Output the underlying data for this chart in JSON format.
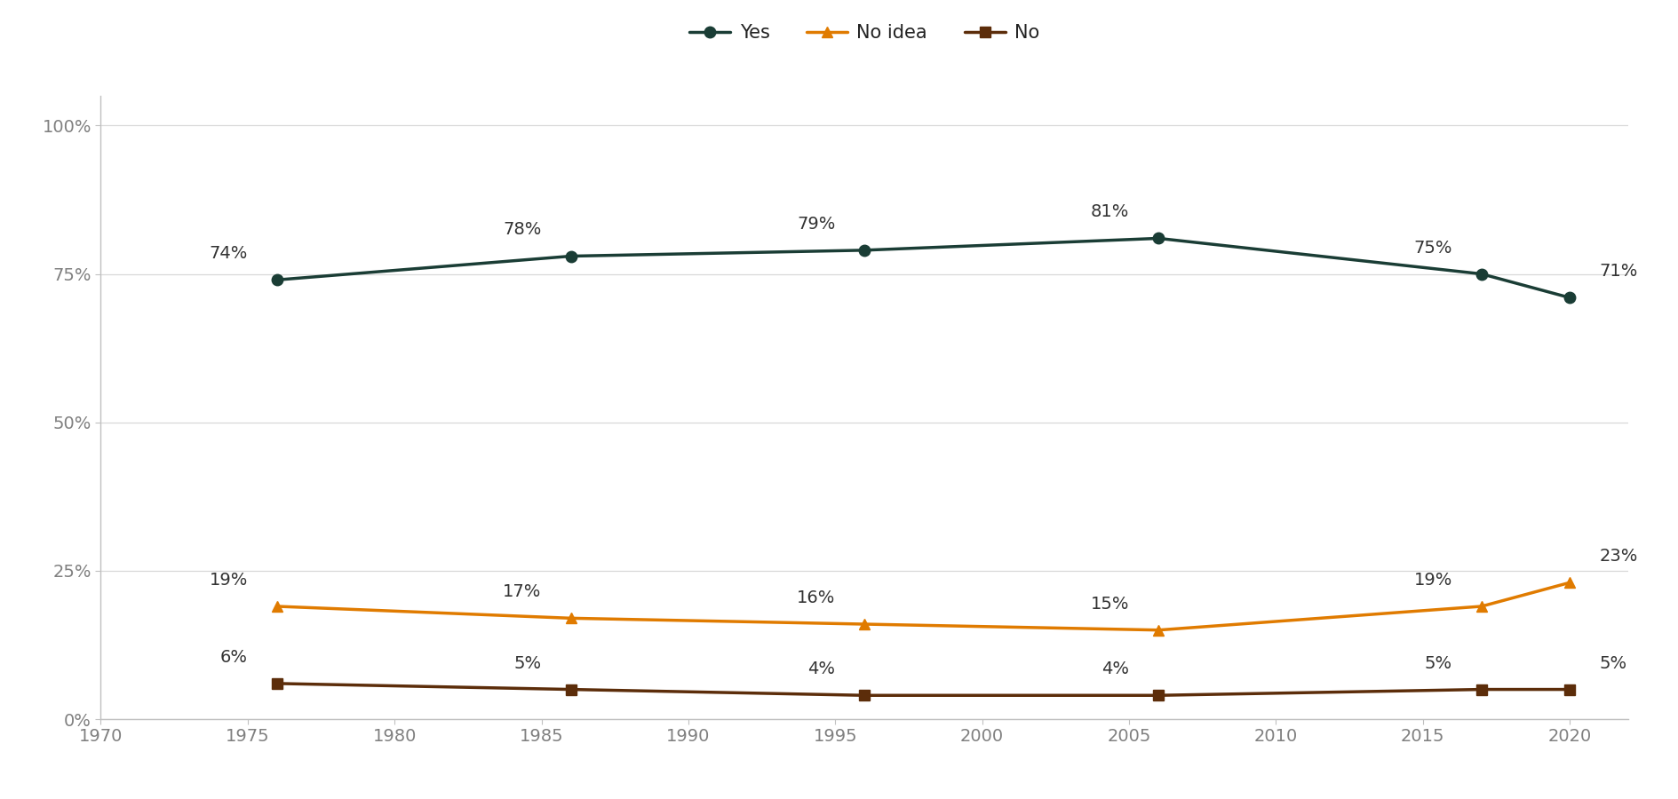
{
  "years": [
    1976,
    1986,
    1996,
    2006,
    2017,
    2020
  ],
  "yes_values": [
    74,
    78,
    79,
    81,
    75,
    71
  ],
  "no_idea_values": [
    19,
    17,
    16,
    15,
    19,
    23
  ],
  "no_values": [
    6,
    5,
    4,
    4,
    5,
    5
  ],
  "yes_color": "#1a3d35",
  "no_idea_color": "#e07b00",
  "no_color": "#5c2d0a",
  "yes_label": "Yes",
  "no_idea_label": "No idea",
  "no_label": "No",
  "xlim": [
    1970,
    2022
  ],
  "ylim": [
    0,
    105
  ],
  "yticks": [
    0,
    25,
    50,
    75,
    100
  ],
  "ytick_labels": [
    "0%",
    "25%",
    "50%",
    "75%",
    "100%"
  ],
  "xticks": [
    1970,
    1975,
    1980,
    1985,
    1990,
    1995,
    2000,
    2005,
    2010,
    2015,
    2020
  ],
  "background_color": "#ffffff",
  "line_width": 2.5,
  "marker_size": 9,
  "label_fontsize": 14,
  "legend_fontsize": 15,
  "tick_fontsize": 14,
  "tick_color": "#808080",
  "spine_color": "#c0c0c0",
  "grid_color": "#d8d8d8",
  "annotations_yes": [
    [
      1976,
      74,
      "left"
    ],
    [
      1986,
      78,
      "left"
    ],
    [
      1996,
      79,
      "left"
    ],
    [
      2006,
      81,
      "left"
    ],
    [
      2017,
      75,
      "left"
    ],
    [
      2020,
      71,
      "right"
    ]
  ],
  "annotations_no_idea": [
    [
      1976,
      19,
      "left"
    ],
    [
      1986,
      17,
      "left"
    ],
    [
      1996,
      16,
      "left"
    ],
    [
      2006,
      15,
      "left"
    ],
    [
      2017,
      19,
      "left"
    ],
    [
      2020,
      23,
      "right"
    ]
  ],
  "annotations_no": [
    [
      1976,
      6,
      "left"
    ],
    [
      1986,
      5,
      "left"
    ],
    [
      1996,
      4,
      "left"
    ],
    [
      2006,
      4,
      "left"
    ],
    [
      2017,
      5,
      "left"
    ],
    [
      2020,
      5,
      "right"
    ]
  ]
}
